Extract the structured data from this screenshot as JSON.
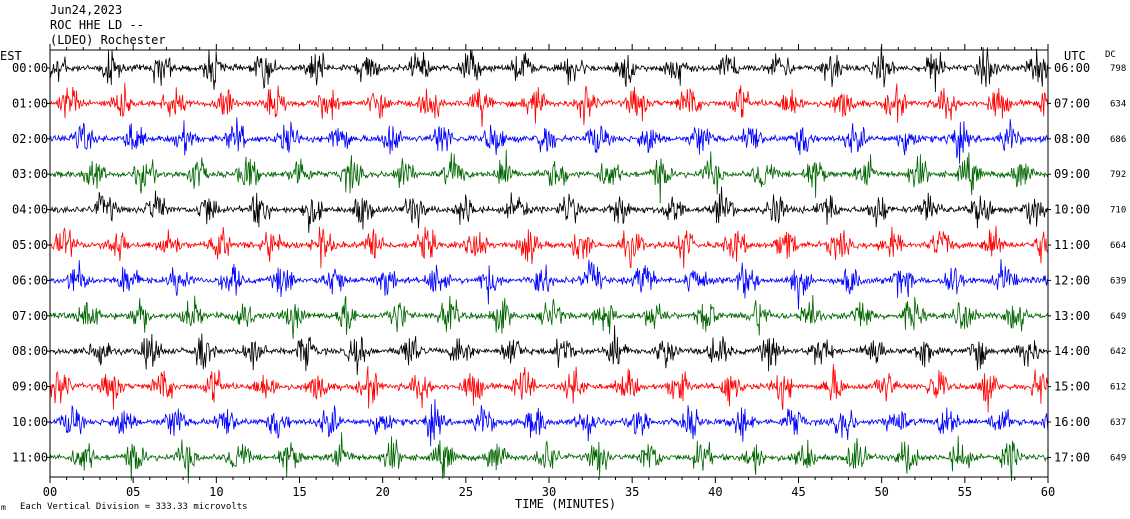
{
  "header": {
    "line1": "Jun24,2023",
    "line2": "ROC HHE LD --",
    "line3": "(LDEO) Rochester"
  },
  "chart_data": {
    "type": "line",
    "left_axis_label": "EST",
    "right_axis_label": "UTC",
    "dc_label": "DC",
    "xlabel": "TIME (MINUTES)",
    "xlim": [
      0,
      60
    ],
    "x_ticks": [
      "00",
      "05",
      "10",
      "15",
      "20",
      "25",
      "30",
      "35",
      "40",
      "45",
      "50",
      "55",
      "60"
    ],
    "footer_note": "Each Vertical Division =  333.33 microvolts",
    "footer_mark": "m",
    "grid": false,
    "colors": [
      "#000000",
      "#ff0000",
      "#0000ff",
      "#006600"
    ],
    "rows": [
      {
        "est": "00:00",
        "utc": "06:00",
        "dc": "798"
      },
      {
        "est": "01:00",
        "utc": "07:00",
        "dc": "634"
      },
      {
        "est": "02:00",
        "utc": "08:00",
        "dc": "686"
      },
      {
        "est": "03:00",
        "utc": "09:00",
        "dc": "792"
      },
      {
        "est": "04:00",
        "utc": "10:00",
        "dc": "710"
      },
      {
        "est": "05:00",
        "utc": "11:00",
        "dc": "664"
      },
      {
        "est": "06:00",
        "utc": "12:00",
        "dc": "639"
      },
      {
        "est": "07:00",
        "utc": "13:00",
        "dc": "649"
      },
      {
        "est": "08:00",
        "utc": "14:00",
        "dc": "642"
      },
      {
        "est": "09:00",
        "utc": "15:00",
        "dc": "612"
      },
      {
        "est": "10:00",
        "utc": "16:00",
        "dc": "637"
      },
      {
        "est": "11:00",
        "utc": "17:00",
        "dc": "649"
      }
    ]
  }
}
